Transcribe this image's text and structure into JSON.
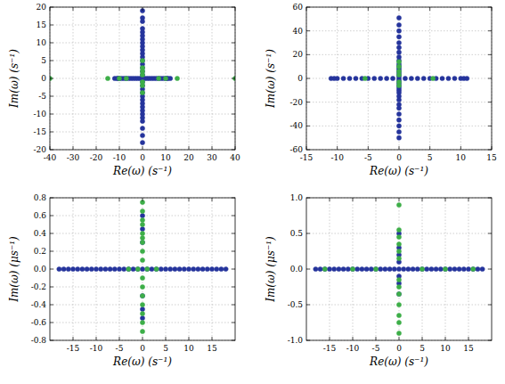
{
  "chart_data": [
    {
      "type": "scatter",
      "xlabel": "Re(ω) (s⁻¹)",
      "ylabel": "Im(ω) (s⁻¹)",
      "grid": true,
      "marker": "circle",
      "xlim": [
        -40,
        40
      ],
      "xticks": [
        -40,
        -30,
        -20,
        -10,
        0,
        10,
        20,
        30,
        40
      ],
      "ylim": [
        -20,
        20
      ],
      "yticks": [
        -20,
        -15,
        -10,
        -5,
        0,
        5,
        10,
        15,
        20
      ],
      "series": [
        {
          "color": "#25349c",
          "x": [
            -12,
            -11,
            -10.5,
            -10,
            -9,
            -8,
            -7,
            -6,
            -5,
            -4,
            -3,
            -2,
            -1,
            1,
            2,
            3,
            4,
            5,
            6,
            7,
            8,
            9,
            10,
            10.5,
            11,
            12,
            0,
            0,
            0,
            0,
            0,
            0,
            0,
            0,
            0,
            0,
            0,
            0,
            0,
            0,
            0,
            0,
            0,
            0,
            0,
            0,
            0,
            0,
            0,
            0,
            0,
            0,
            0,
            0,
            0,
            0,
            0,
            0,
            0
          ],
          "values": [
            0,
            0,
            0,
            0,
            0,
            0,
            0,
            0,
            0,
            0,
            0,
            0,
            0,
            0,
            0,
            0,
            0,
            0,
            0,
            0,
            0,
            0,
            0,
            0,
            0,
            0,
            -18,
            -16,
            -14,
            -12,
            -11,
            -10,
            -9,
            -8,
            -7,
            -6,
            -5,
            -4,
            -3,
            -2,
            -1,
            0,
            1,
            2,
            3,
            4,
            5,
            6,
            7,
            8,
            9,
            10,
            11,
            12,
            13,
            14,
            16,
            17,
            19
          ]
        },
        {
          "color": "#3dae48",
          "x": [
            -40,
            40,
            -15,
            15,
            -10,
            10,
            -7,
            7,
            0,
            0,
            0,
            0,
            0,
            0,
            0
          ],
          "values": [
            0,
            0,
            0,
            0,
            0,
            0,
            0,
            0,
            -4,
            -2,
            -1,
            1,
            2,
            3,
            5
          ]
        }
      ]
    },
    {
      "type": "scatter",
      "xlabel": "Re(ω) (s⁻¹)",
      "ylabel": "Im(ω) (s⁻¹)",
      "grid": true,
      "marker": "circle",
      "xlim": [
        -15,
        15
      ],
      "xticks": [
        -15,
        -10,
        -5,
        0,
        5,
        10,
        15
      ],
      "ylim": [
        -60,
        60
      ],
      "yticks": [
        -60,
        -40,
        -20,
        0,
        20,
        40,
        60
      ],
      "series": [
        {
          "color": "#25349c",
          "x": [
            -11,
            -10.5,
            -10,
            -9,
            -8,
            -7,
            -6,
            -5,
            -4,
            -3,
            -2,
            -1,
            0,
            1,
            2,
            3,
            4,
            5,
            6,
            7,
            8,
            9,
            10,
            10.5,
            11,
            0,
            0,
            0,
            0,
            0,
            0,
            0,
            0,
            0,
            0,
            0,
            0,
            0,
            0,
            0,
            0,
            0,
            0,
            0,
            0,
            0,
            0,
            0,
            0,
            0,
            0,
            0,
            0,
            0,
            0
          ],
          "values": [
            0,
            0,
            0,
            0,
            0,
            0,
            0,
            0,
            0,
            0,
            0,
            0,
            0,
            0,
            0,
            0,
            0,
            0,
            0,
            0,
            0,
            0,
            0,
            0,
            0,
            -50,
            -45,
            -40,
            -35,
            -30,
            -25,
            -22,
            -18,
            -15,
            -12,
            -10,
            -8,
            -6,
            -4,
            -2,
            2,
            4,
            6,
            8,
            10,
            12,
            15,
            18,
            22,
            26,
            30,
            35,
            40,
            45,
            51
          ]
        },
        {
          "color": "#3dae48",
          "x": [
            0,
            0,
            0,
            0,
            0,
            0,
            -5.5,
            5.5
          ],
          "values": [
            -6,
            -3,
            3,
            6,
            10,
            14,
            0,
            0
          ]
        }
      ]
    },
    {
      "type": "scatter",
      "xlabel": "Re(ω) (s⁻¹)",
      "ylabel": "Im(ω) (μs⁻¹)",
      "grid": true,
      "marker": "circle",
      "xlim": [
        -20,
        20
      ],
      "xticks": [
        -15,
        -10,
        -5,
        0,
        5,
        10,
        15
      ],
      "ylim": [
        -0.8,
        0.8
      ],
      "yticks": [
        -0.8,
        -0.6,
        -0.4,
        -0.2,
        {
          "value": 0,
          "label": "0.0"
        },
        0.2,
        0.4,
        0.6,
        0.8
      ],
      "series": [
        {
          "color": "#25349c",
          "x": [
            -18,
            -17,
            -16,
            -15,
            -14,
            -13,
            -12,
            -11,
            -10,
            -9,
            -8,
            -7,
            -6,
            -5,
            -4,
            -3,
            -2,
            -1,
            0,
            1,
            2,
            3,
            4,
            5,
            6,
            7,
            8,
            9,
            10,
            11,
            12,
            13,
            14,
            15,
            16,
            17,
            18,
            0,
            0,
            0,
            0,
            0,
            0
          ],
          "values": [
            0,
            0,
            0,
            0,
            0,
            0,
            0,
            0,
            0,
            0,
            0,
            0,
            0,
            0,
            0,
            0,
            0,
            0,
            0,
            0,
            0,
            0,
            0,
            0,
            0,
            0,
            0,
            0,
            0,
            0,
            0,
            0,
            0,
            0,
            0,
            0,
            0,
            0.6,
            0.45,
            0.3,
            -0.3,
            -0.45,
            -0.55
          ]
        },
        {
          "color": "#3dae48",
          "x": [
            0,
            0,
            0,
            0,
            0,
            0,
            0,
            0,
            0,
            0,
            0,
            0,
            0,
            0,
            0,
            0,
            -3,
            -1,
            1,
            3
          ],
          "values": [
            0.75,
            0.65,
            0.55,
            0.5,
            0.4,
            0.35,
            0.3,
            0.2,
            0.1,
            -0.1,
            -0.2,
            -0.3,
            -0.4,
            -0.5,
            -0.6,
            -0.7,
            0,
            0,
            0,
            0
          ]
        }
      ]
    },
    {
      "type": "scatter",
      "xlabel": "Re(ω) (s⁻¹)",
      "ylabel": "Im(ω) (μs⁻¹)",
      "grid": true,
      "marker": "circle",
      "xlim": [
        -20,
        20
      ],
      "xticks": [
        -15,
        -10,
        -5,
        0,
        5,
        10,
        15
      ],
      "ylim": [
        -1,
        1
      ],
      "yticks": [
        {
          "value": -1,
          "label": "-1.0"
        },
        -0.5,
        {
          "value": 0,
          "label": "0.0"
        },
        0.5,
        {
          "value": 1,
          "label": "1.0"
        }
      ],
      "series": [
        {
          "color": "#25349c",
          "x": [
            -18,
            -17,
            -16,
            -15,
            -14,
            -13,
            -12,
            -11,
            -10,
            -9,
            -8,
            -7,
            -6,
            -5,
            -4,
            -3,
            -2,
            -1,
            0,
            1,
            2,
            3,
            4,
            5,
            6,
            7,
            8,
            9,
            10,
            11,
            12,
            13,
            14,
            15,
            16,
            17,
            18,
            0,
            0,
            0,
            0,
            0,
            0,
            0
          ],
          "values": [
            0,
            0,
            0,
            0,
            0,
            0,
            0,
            0,
            0,
            0,
            0,
            0,
            0,
            0,
            0,
            0,
            0,
            0,
            0,
            0,
            0,
            0,
            0,
            0,
            0,
            0,
            0,
            0,
            0,
            0,
            0,
            0,
            0,
            0,
            0,
            0,
            0,
            0.1,
            0.2,
            0.3,
            0.5,
            -0.1,
            -0.2,
            -0.35
          ]
        },
        {
          "color": "#3dae48",
          "x": [
            0,
            0,
            0,
            0,
            0,
            0,
            0,
            0,
            0,
            0,
            0,
            0,
            0,
            -16,
            16,
            -10,
            10,
            -5,
            5
          ],
          "values": [
            0.9,
            0.55,
            0.45,
            0.35,
            0.25,
            0.15,
            -0.15,
            -0.25,
            -0.35,
            -0.5,
            -0.65,
            -0.75,
            -0.9,
            0,
            0,
            0,
            0,
            0,
            0
          ]
        }
      ]
    }
  ]
}
